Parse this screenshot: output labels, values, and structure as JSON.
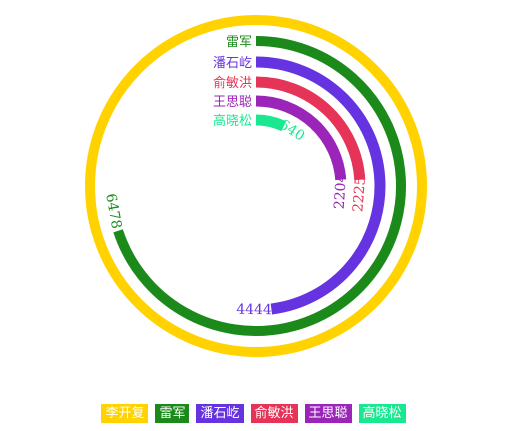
{
  "chart_data": {
    "type": "radial-bar",
    "max": 6478,
    "series": [
      {
        "name": "李开复",
        "value": 6478,
        "color": "#FFD200"
      },
      {
        "name": "雷军",
        "value": 6478,
        "color": "#1B8A1B"
      },
      {
        "name": "潘石屹",
        "value": 4444,
        "color": "#6633E0"
      },
      {
        "name": "俞敏洪",
        "value": 2225,
        "color": "#E63458"
      },
      {
        "name": "王思聪",
        "value": 2204,
        "color": "#9B25B8"
      },
      {
        "name": "高晓松",
        "value": 640,
        "color": "#1AE890"
      }
    ],
    "legend_position": "bottom-center"
  }
}
